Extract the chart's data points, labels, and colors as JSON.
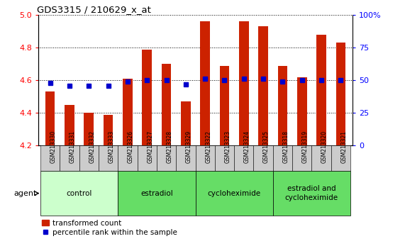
{
  "title": "GDS3315 / 210629_x_at",
  "samples": [
    "GSM213330",
    "GSM213331",
    "GSM213332",
    "GSM213333",
    "GSM213326",
    "GSM213327",
    "GSM213328",
    "GSM213329",
    "GSM213322",
    "GSM213323",
    "GSM213324",
    "GSM213325",
    "GSM213318",
    "GSM213319",
    "GSM213320",
    "GSM213321"
  ],
  "transformed_count": [
    4.53,
    4.45,
    4.4,
    4.39,
    4.61,
    4.79,
    4.7,
    4.47,
    4.96,
    4.69,
    4.96,
    4.93,
    4.69,
    4.62,
    4.88,
    4.83
  ],
  "percentile_rank": [
    48,
    46,
    46,
    46,
    49,
    50,
    50,
    47,
    51,
    50,
    51,
    51,
    49,
    50,
    50,
    50
  ],
  "groups": [
    {
      "label": "control",
      "start": 0,
      "end": 4,
      "color": "#ccffcc"
    },
    {
      "label": "estradiol",
      "start": 4,
      "end": 8,
      "color": "#66ee66"
    },
    {
      "label": "cycloheximide",
      "start": 8,
      "end": 12,
      "color": "#66ee66"
    },
    {
      "label": "estradiol and\ncycloheximide",
      "start": 12,
      "end": 16,
      "color": "#66ee66"
    }
  ],
  "ylim": [
    4.2,
    5.0
  ],
  "yticks": [
    4.2,
    4.4,
    4.6,
    4.8,
    5.0
  ],
  "right_yticks": [
    0,
    25,
    50,
    75,
    100
  ],
  "right_ytick_labels": [
    "0",
    "25",
    "50",
    "75",
    "100%"
  ],
  "bar_color": "#cc2200",
  "dot_color": "#0000cc",
  "bar_width": 0.5,
  "background_color": "#ffffff",
  "plot_bg": "#ffffff",
  "legend_bar_label": "transformed count",
  "legend_dot_label": "percentile rank within the sample",
  "sample_bg_color": "#cccccc",
  "agent_label": "agent"
}
